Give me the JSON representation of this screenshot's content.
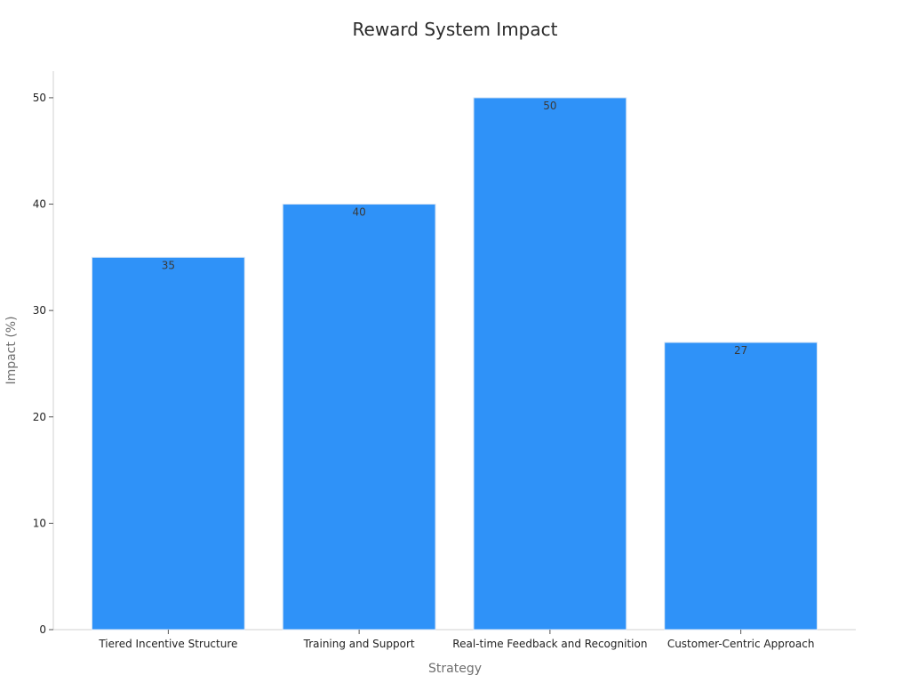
{
  "chart_data": {
    "type": "bar",
    "title": "Reward System Impact",
    "xlabel": "Strategy",
    "ylabel": "Impact (%)",
    "categories": [
      "Tiered Incentive Structure",
      "Training and Support",
      "Real-time Feedback and Recognition",
      "Customer-Centric Approach"
    ],
    "values": [
      35,
      40,
      50,
      27
    ],
    "data_labels": [
      "35",
      "40",
      "50",
      "27"
    ],
    "ylim": [
      0,
      52.5
    ],
    "yticks": [
      0,
      10,
      20,
      30,
      40,
      50
    ],
    "ytick_labels": [
      "0",
      "10",
      "20",
      "30",
      "40",
      "50"
    ],
    "grid": false,
    "legend": "none",
    "bar_color": "#2f92f8"
  }
}
